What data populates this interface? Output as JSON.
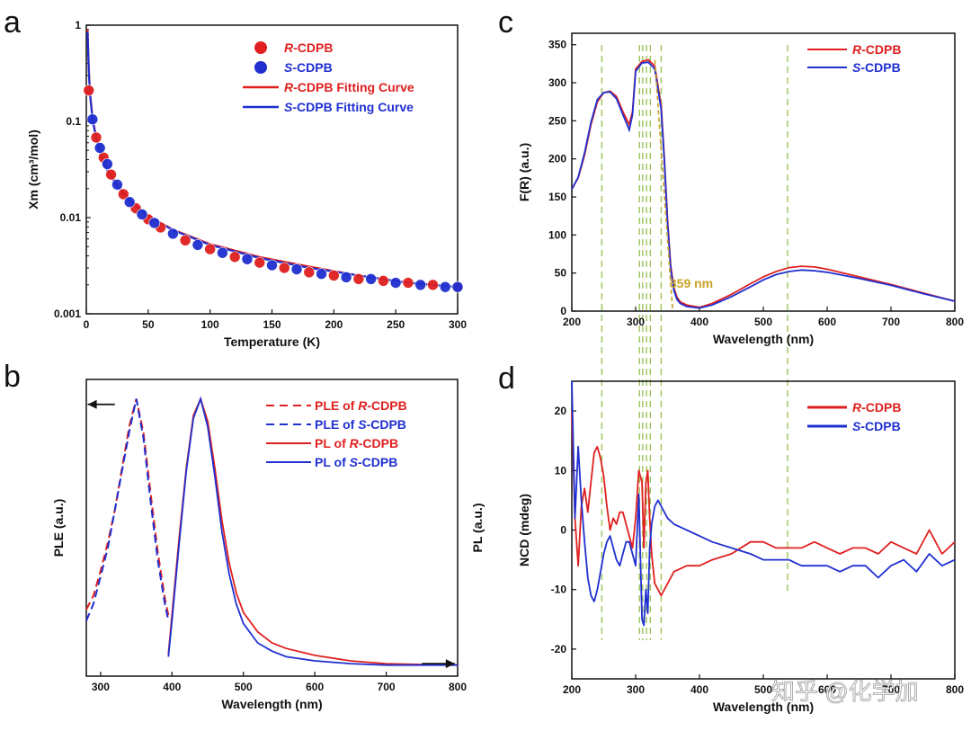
{
  "watermark": "知乎 @化学加",
  "colors": {
    "red": "#e02020",
    "blue": "#1f2fd0",
    "guide": "#9bc45a",
    "annotation": "#c9a227",
    "axis": "#111111"
  },
  "chart_data": [
    {
      "panel": "a",
      "type": "scatter",
      "yscale": "log",
      "xlabel": "Temperature (K)",
      "ylabel": "Χm (cm³/mol)",
      "xlim": [
        0,
        300
      ],
      "ylim": [
        0.001,
        1
      ],
      "xticks": [
        0,
        50,
        100,
        150,
        200,
        250,
        300
      ],
      "xtick_labels": [
        "0",
        "50",
        "100",
        "150",
        "200",
        "250",
        "300"
      ],
      "yticks": [
        0.001,
        0.01,
        0.1,
        1
      ],
      "ytick_labels": [
        "0.001",
        "0.01",
        "0.1",
        "1"
      ],
      "legend_position": "top-right",
      "legend": [
        {
          "prefix": "R",
          "text": "-CDPB",
          "color": "#e02020",
          "kind": "marker"
        },
        {
          "prefix": "S",
          "text": "-CDPB",
          "color": "#1f2fd0",
          "kind": "marker"
        },
        {
          "prefix": "R",
          "text": "-CDPB Fitting Curve",
          "color": "#e02020",
          "kind": "line"
        },
        {
          "prefix": "S",
          "text": "-CDPB Fitting Curve",
          "color": "#1f2fd0",
          "kind": "line"
        }
      ],
      "series": [
        {
          "name": "R-CDPB",
          "color": "#e02020",
          "kind": "points",
          "x": [
            2,
            8,
            14,
            20,
            30,
            40,
            50,
            60,
            80,
            100,
            120,
            140,
            160,
            180,
            200,
            220,
            240,
            260,
            280,
            300
          ],
          "y": [
            0.21,
            0.068,
            0.042,
            0.028,
            0.0175,
            0.0125,
            0.0096,
            0.0079,
            0.0058,
            0.0047,
            0.0039,
            0.0034,
            0.003,
            0.0027,
            0.0025,
            0.0023,
            0.0022,
            0.0021,
            0.002,
            0.0019
          ]
        },
        {
          "name": "S-CDPB",
          "color": "#1f2fd0",
          "kind": "points",
          "x": [
            5,
            11,
            17,
            25,
            35,
            45,
            55,
            70,
            90,
            110,
            130,
            150,
            170,
            190,
            210,
            230,
            250,
            270,
            290,
            300
          ],
          "y": [
            0.105,
            0.053,
            0.036,
            0.022,
            0.0145,
            0.0108,
            0.0088,
            0.0068,
            0.0052,
            0.0043,
            0.0037,
            0.0032,
            0.0029,
            0.0026,
            0.0024,
            0.0023,
            0.0021,
            0.002,
            0.0019,
            0.0019
          ]
        },
        {
          "name": "R-CDPB Fitting Curve",
          "color": "#e02020",
          "kind": "line",
          "x": [
            1,
            2,
            3,
            5,
            8,
            12,
            17,
            25,
            35,
            50,
            70,
            100,
            140,
            180,
            220,
            260,
            300
          ],
          "y": [
            0.9,
            0.35,
            0.2,
            0.11,
            0.068,
            0.045,
            0.032,
            0.022,
            0.015,
            0.0105,
            0.0075,
            0.0053,
            0.0039,
            0.0031,
            0.0025,
            0.0021,
            0.0019
          ]
        },
        {
          "name": "S-CDPB Fitting Curve",
          "color": "#1f2fd0",
          "kind": "line",
          "x": [
            1,
            2,
            3,
            5,
            8,
            12,
            17,
            25,
            35,
            50,
            70,
            100,
            140,
            180,
            220,
            260,
            300
          ],
          "y": [
            0.85,
            0.33,
            0.19,
            0.105,
            0.066,
            0.044,
            0.031,
            0.021,
            0.0148,
            0.0104,
            0.0074,
            0.0052,
            0.0038,
            0.003,
            0.0025,
            0.0021,
            0.0019
          ]
        }
      ]
    },
    {
      "panel": "b",
      "type": "line",
      "xlabel": "Wavelength (nm)",
      "ylabel": "PLE (a.u.)",
      "ylabel_right": "PL (a.u.)",
      "xlim": [
        280,
        800
      ],
      "ylim": [
        0,
        1.07
      ],
      "xticks": [
        300,
        400,
        500,
        600,
        700,
        800
      ],
      "xtick_labels": [
        "300",
        "400",
        "500",
        "600",
        "700",
        "800"
      ],
      "legend_position": "top-right",
      "legend": [
        {
          "text_pre": "PLE of ",
          "prefix": "R",
          "text": "-CDPB",
          "color": "#e02020",
          "dash": true
        },
        {
          "text_pre": "PLE of ",
          "prefix": "S",
          "text": "-CDPB",
          "color": "#1f2fd0",
          "dash": true
        },
        {
          "text_pre": "PL of ",
          "prefix": "R",
          "text": "-CDPB",
          "color": "#e02020",
          "dash": false
        },
        {
          "text_pre": "PL of ",
          "prefix": "S",
          "text": "-CDPB",
          "color": "#1f2fd0",
          "dash": false
        }
      ],
      "arrows": [
        {
          "direction": "left",
          "x_from": 320,
          "x_to": 282,
          "y": 0.98
        },
        {
          "direction": "right",
          "x_from": 750,
          "x_to": 796,
          "y": 0.045
        }
      ],
      "series": [
        {
          "name": "PLE of R-CDPB",
          "color": "#e02020",
          "dash": true,
          "x": [
            280,
            290,
            300,
            310,
            320,
            330,
            340,
            350,
            360,
            370,
            380,
            390,
            395
          ],
          "y": [
            0.24,
            0.29,
            0.38,
            0.48,
            0.6,
            0.75,
            0.9,
            1.0,
            0.88,
            0.66,
            0.45,
            0.28,
            0.22
          ]
        },
        {
          "name": "PLE of S-CDPB",
          "color": "#1f2fd0",
          "dash": true,
          "x": [
            280,
            290,
            300,
            310,
            320,
            330,
            340,
            350,
            360,
            370,
            380,
            390,
            395
          ],
          "y": [
            0.2,
            0.26,
            0.36,
            0.46,
            0.6,
            0.74,
            0.88,
            1.0,
            0.86,
            0.63,
            0.42,
            0.26,
            0.2
          ]
        },
        {
          "name": "PL of R-CDPB",
          "color": "#e02020",
          "dash": false,
          "x": [
            395,
            400,
            410,
            420,
            430,
            440,
            450,
            460,
            470,
            480,
            490,
            500,
            520,
            540,
            560,
            600,
            650,
            700,
            750,
            800
          ],
          "y": [
            0.08,
            0.22,
            0.5,
            0.75,
            0.94,
            1.0,
            0.92,
            0.75,
            0.56,
            0.41,
            0.3,
            0.23,
            0.16,
            0.12,
            0.1,
            0.075,
            0.055,
            0.045,
            0.042,
            0.04
          ]
        },
        {
          "name": "PL of S-CDPB",
          "color": "#1f2fd0",
          "dash": false,
          "x": [
            395,
            400,
            410,
            420,
            430,
            440,
            450,
            460,
            470,
            480,
            490,
            500,
            520,
            540,
            560,
            600,
            650,
            700,
            750,
            800
          ],
          "y": [
            0.07,
            0.2,
            0.48,
            0.74,
            0.93,
            1.0,
            0.9,
            0.72,
            0.52,
            0.37,
            0.26,
            0.19,
            0.12,
            0.09,
            0.07,
            0.055,
            0.045,
            0.04,
            0.04,
            0.04
          ]
        }
      ]
    },
    {
      "panel": "c",
      "type": "line",
      "xlabel": "Wavelength (nm)",
      "ylabel": "F(R) (a.u.)",
      "xlim": [
        200,
        800
      ],
      "ylim": [
        0,
        365
      ],
      "xticks": [
        200,
        300,
        400,
        500,
        600,
        700,
        800
      ],
      "xtick_labels": [
        "200",
        "300",
        "400",
        "500",
        "600",
        "700",
        "800"
      ],
      "yticks": [
        0,
        50,
        100,
        150,
        200,
        250,
        300,
        350
      ],
      "ytick_labels": [
        "0",
        "50",
        "100",
        "150",
        "200",
        "250",
        "300",
        "350"
      ],
      "legend_position": "top-right",
      "legend": [
        {
          "prefix": "R",
          "text": "-CDPB",
          "color": "#e02020"
        },
        {
          "prefix": "S",
          "text": "-CDPB",
          "color": "#1f2fd0"
        }
      ],
      "annotation": {
        "text": "359 nm",
        "x": 359,
        "y": 31,
        "color": "#c9a227"
      },
      "guides": [
        247,
        306,
        311,
        317,
        323,
        340,
        538
      ],
      "onset_line": {
        "x1": 330,
        "y1": 330,
        "x2": 358,
        "y2": 0
      },
      "series": [
        {
          "name": "R-CDPB",
          "color": "#e02020",
          "x": [
            200,
            210,
            220,
            230,
            240,
            250,
            260,
            270,
            280,
            290,
            295,
            300,
            310,
            320,
            330,
            340,
            345,
            350,
            355,
            360,
            365,
            370,
            380,
            400,
            420,
            450,
            480,
            500,
            520,
            540,
            560,
            580,
            600,
            650,
            700,
            750,
            800
          ],
          "y": [
            160,
            175,
            205,
            245,
            275,
            287,
            289,
            282,
            262,
            245,
            262,
            318,
            328,
            330,
            322,
            270,
            200,
            120,
            60,
            30,
            18,
            12,
            8,
            5,
            10,
            22,
            36,
            45,
            52,
            57,
            59,
            58,
            55,
            45,
            35,
            24,
            13
          ]
        },
        {
          "name": "S-CDPB",
          "color": "#1f2fd0",
          "x": [
            200,
            210,
            220,
            230,
            240,
            250,
            260,
            270,
            280,
            290,
            295,
            300,
            310,
            320,
            330,
            340,
            345,
            350,
            355,
            360,
            365,
            370,
            380,
            400,
            420,
            450,
            480,
            500,
            520,
            540,
            560,
            580,
            600,
            650,
            700,
            750,
            800
          ],
          "y": [
            160,
            176,
            208,
            248,
            278,
            287,
            288,
            279,
            258,
            238,
            258,
            315,
            326,
            327,
            318,
            265,
            195,
            115,
            55,
            27,
            15,
            10,
            6,
            4,
            8,
            19,
            32,
            41,
            48,
            52,
            54,
            53,
            51,
            43,
            34,
            23,
            13
          ]
        }
      ]
    },
    {
      "panel": "d",
      "type": "line",
      "xlabel": "Wavelength (nm)",
      "ylabel": "NCD (mdeg)",
      "xlim": [
        200,
        800
      ],
      "ylim": [
        -25,
        25
      ],
      "xticks": [
        200,
        300,
        400,
        500,
        600,
        700,
        800
      ],
      "xtick_labels": [
        "200",
        "300",
        "400",
        "500",
        "600",
        "700",
        "800"
      ],
      "yticks": [
        -20,
        -10,
        0,
        10,
        20
      ],
      "ytick_labels": [
        "-20",
        "-10",
        "0",
        "10",
        "20"
      ],
      "legend_position": "top-right",
      "legend": [
        {
          "prefix": "R",
          "text": "-CDPB",
          "color": "#e02020"
        },
        {
          "prefix": "S",
          "text": "-CDPB",
          "color": "#1f2fd0"
        }
      ],
      "series": [
        {
          "name": "R-CDPB",
          "color": "#e02020",
          "x": [
            200,
            205,
            210,
            215,
            220,
            225,
            230,
            235,
            240,
            245,
            250,
            255,
            260,
            265,
            270,
            275,
            280,
            285,
            290,
            295,
            300,
            305,
            310,
            313,
            316,
            319,
            322,
            325,
            330,
            335,
            340,
            350,
            360,
            380,
            400,
            420,
            450,
            480,
            500,
            520,
            540,
            560,
            580,
            600,
            620,
            640,
            660,
            680,
            700,
            720,
            740,
            760,
            780,
            800
          ],
          "y": [
            20,
            2,
            -6,
            4,
            7,
            3,
            8,
            13,
            14,
            12,
            9,
            4,
            0,
            2,
            1,
            3,
            3,
            1,
            -1,
            -3,
            2,
            10,
            8,
            -3,
            8,
            10,
            2,
            -4,
            -9,
            -10,
            -11,
            -9,
            -7,
            -6,
            -6,
            -5,
            -4,
            -2,
            -2,
            -3,
            -3,
            -3,
            -2,
            -3,
            -4,
            -3,
            -3,
            -4,
            -2,
            -3,
            -4,
            0,
            -4,
            -2
          ]
        },
        {
          "name": "S-CDPB",
          "color": "#1f2fd0",
          "x": [
            200,
            205,
            210,
            215,
            220,
            225,
            230,
            235,
            240,
            245,
            250,
            255,
            260,
            265,
            270,
            275,
            280,
            285,
            290,
            295,
            300,
            305,
            310,
            313,
            316,
            319,
            322,
            325,
            330,
            335,
            340,
            350,
            360,
            380,
            400,
            420,
            450,
            480,
            500,
            520,
            540,
            560,
            580,
            600,
            620,
            640,
            660,
            680,
            700,
            720,
            740,
            760,
            780,
            800
          ],
          "y": [
            25,
            2,
            14,
            5,
            -2,
            -8,
            -11,
            -12,
            -10,
            -7,
            -4,
            -2,
            -1,
            -3,
            -5,
            -6,
            -4,
            -2,
            -2,
            -4,
            -6,
            6,
            -15,
            -16,
            -10,
            -14,
            -3,
            1,
            4,
            5,
            4,
            2,
            1,
            0,
            -1,
            -2,
            -3,
            -4,
            -5,
            -5,
            -5,
            -6,
            -6,
            -6,
            -7,
            -6,
            -6,
            -8,
            -6,
            -5,
            -7,
            -4,
            -6,
            -5
          ]
        }
      ]
    }
  ]
}
